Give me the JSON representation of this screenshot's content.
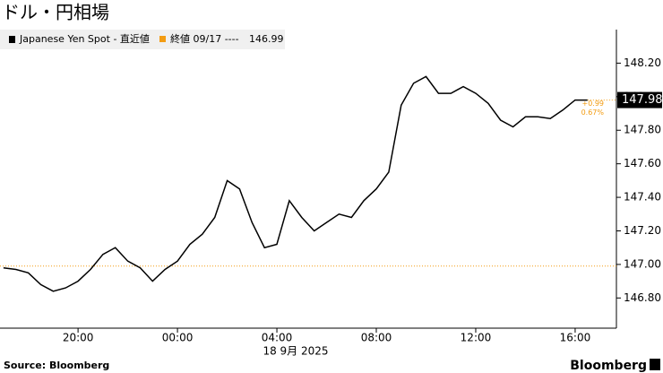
{
  "chart_data": {
    "type": "line",
    "title": "ドル・円相場",
    "x": [
      17,
      17.5,
      18,
      18.5,
      19,
      19.5,
      20,
      20.5,
      21,
      21.5,
      22,
      22.5,
      23,
      23.5,
      24,
      24.5,
      25,
      25.5,
      26,
      26.5,
      27,
      27.5,
      28,
      28.5,
      29,
      29.5,
      30,
      30.5,
      31,
      31.5,
      32,
      32.5,
      33,
      33.5,
      34,
      34.5,
      35,
      35.5,
      36,
      36.5,
      37,
      37.5,
      38,
      38.5,
      39,
      39.5,
      40,
      40.5
    ],
    "series": [
      {
        "name": "Japanese Yen Spot - 直近値",
        "color": "#000000",
        "values": [
          146.98,
          146.97,
          146.95,
          146.88,
          146.84,
          146.86,
          146.9,
          146.97,
          147.06,
          147.1,
          147.02,
          146.98,
          146.9,
          146.97,
          147.02,
          147.12,
          147.18,
          147.28,
          147.5,
          147.45,
          147.25,
          147.1,
          147.12,
          147.38,
          147.28,
          147.2,
          147.25,
          147.3,
          147.28,
          147.38,
          147.45,
          147.55,
          147.95,
          148.08,
          148.12,
          148.02,
          148.02,
          148.06,
          148.02,
          147.96,
          147.86,
          147.82,
          147.88,
          147.88,
          147.87,
          147.92,
          147.98,
          147.98
        ]
      }
    ],
    "reference": {
      "name": "終値 09/17 ----",
      "value": 146.99,
      "color": "#f39c12"
    },
    "annotations": [
      {
        "value": 0.99,
        "label": "+0.99"
      },
      {
        "value": 0.67,
        "label": "0.67%"
      }
    ],
    "xlim": [
      16.86,
      41.66
    ],
    "xticks": [
      {
        "value": 20,
        "label": "20:00"
      },
      {
        "value": 24,
        "label": "00:00"
      },
      {
        "value": 28,
        "label": "04:00"
      },
      {
        "value": 32,
        "label": "08:00"
      },
      {
        "value": 36,
        "label": "12:00"
      },
      {
        "value": 40,
        "label": "16:00"
      }
    ],
    "xlabel": "18 9月 2025",
    "ylim": [
      146.62,
      148.4
    ],
    "yticks": [
      {
        "value": 146.8,
        "label": "146.80"
      },
      {
        "value": 147.0,
        "label": "147.00"
      },
      {
        "value": 147.2,
        "label": "147.20"
      },
      {
        "value": 147.4,
        "label": "147.40"
      },
      {
        "value": 147.6,
        "label": "147.60"
      },
      {
        "value": 147.8,
        "label": "147.80"
      },
      {
        "value": 148.0,
        "label": "148.00"
      },
      {
        "value": 148.2,
        "label": "148.20"
      }
    ],
    "source": "Source: Bloomberg",
    "brand": "Bloomberg"
  }
}
